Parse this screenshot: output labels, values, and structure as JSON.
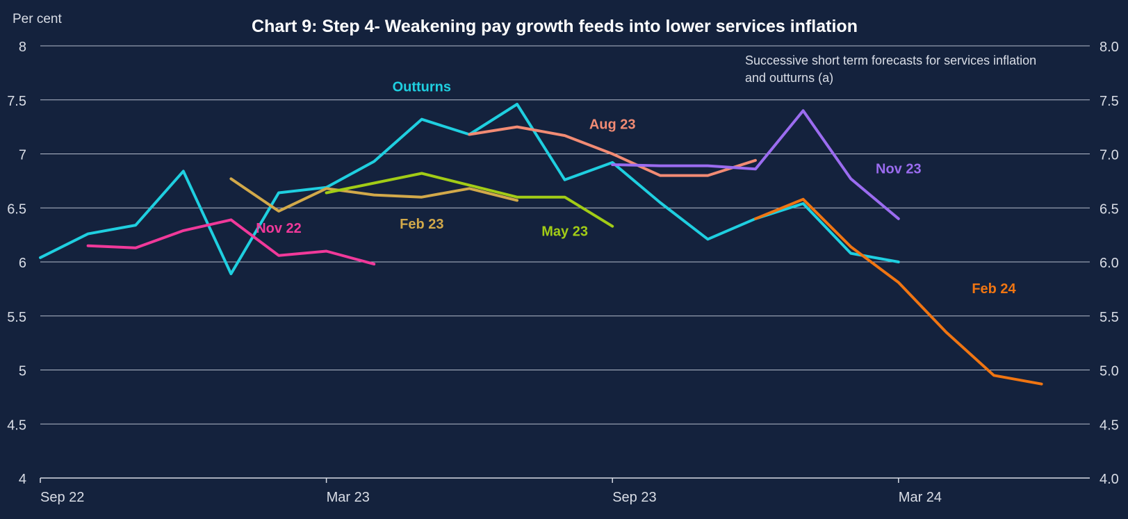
{
  "chart_data": {
    "type": "line",
    "title": "Chart  9: Step 4- Weakening pay growth feeds into lower services inflation",
    "subtitle_lines": [
      "Successive short term forecasts for services inflation",
      "and outturns (a)"
    ],
    "ylabel": "Per cent",
    "ylim": [
      4,
      8
    ],
    "yticks_left": [
      "4",
      "4.5",
      "5",
      "5.5",
      "6",
      "6.5",
      "7",
      "7.5",
      "8"
    ],
    "yticks_right": [
      "4.0",
      "4.5",
      "5.0",
      "5.5",
      "6.0",
      "6.5",
      "7.0",
      "7.5",
      "8.0"
    ],
    "ytick_values": [
      4,
      4.5,
      5,
      5.5,
      6,
      6.5,
      7,
      7.5,
      8
    ],
    "x_months": [
      "2022-09",
      "2022-10",
      "2022-11",
      "2022-12",
      "2023-01",
      "2023-02",
      "2023-03",
      "2023-04",
      "2023-05",
      "2023-06",
      "2023-07",
      "2023-08",
      "2023-09",
      "2023-10",
      "2023-11",
      "2023-12",
      "2024-01",
      "2024-02",
      "2024-03",
      "2024-04",
      "2024-05",
      "2024-06",
      "2024-07",
      "2024-08"
    ],
    "xticks": [
      {
        "label": "Sep 22",
        "month": "2022-09"
      },
      {
        "label": "Mar 23",
        "month": "2023-03"
      },
      {
        "label": "Sep 23",
        "month": "2023-09"
      },
      {
        "label": "Mar 24",
        "month": "2024-03"
      }
    ],
    "grid": true,
    "series": [
      {
        "name": "Outturns",
        "color": "#1fcfe0",
        "start": "2022-09",
        "values": [
          6.04,
          6.26,
          6.34,
          6.84,
          5.89,
          6.64,
          6.69,
          6.93,
          7.32,
          7.18,
          7.46,
          6.76,
          6.92,
          6.55,
          6.21,
          6.4,
          6.54,
          6.08,
          6.0
        ]
      },
      {
        "name": "Nov 22",
        "color": "#f0399a",
        "start": "2022-10",
        "values": [
          6.15,
          6.13,
          6.29,
          6.39,
          6.06,
          6.1,
          5.98
        ]
      },
      {
        "name": "Feb 23",
        "color": "#d2a94a",
        "start": "2023-01",
        "values": [
          6.77,
          6.47,
          6.68,
          6.62,
          6.6,
          6.68,
          6.57
        ]
      },
      {
        "name": "May 23",
        "color": "#a2cc16",
        "start": "2023-03",
        "values": [
          6.64,
          6.73,
          6.82,
          6.71,
          6.6,
          6.6,
          6.33
        ]
      },
      {
        "name": "Aug 23",
        "color": "#f28b74",
        "start": "2023-06",
        "values": [
          7.18,
          7.25,
          7.17,
          7.0,
          6.8,
          6.8,
          6.94
        ]
      },
      {
        "name": "Nov 23",
        "color": "#9b6cf0",
        "start": "2023-09",
        "values": [
          6.9,
          6.89,
          6.89,
          6.86,
          7.4,
          6.77,
          6.4
        ]
      },
      {
        "name": "Feb 24",
        "color": "#f07512",
        "start": "2023-12",
        "values": [
          6.4,
          6.58,
          6.14,
          5.81,
          5.35,
          4.95,
          4.87
        ]
      }
    ],
    "series_labels": [
      {
        "text": "Outturns",
        "color": "#1fcfe0",
        "month": "2023-05",
        "value": 7.58
      },
      {
        "text": "Nov 22",
        "color": "#f0399a",
        "month": "2023-02",
        "value": 6.27
      },
      {
        "text": "Feb 23",
        "color": "#d2a94a",
        "month": "2023-05",
        "value": 6.31
      },
      {
        "text": "May 23",
        "color": "#a2cc16",
        "month": "2023-08",
        "value": 6.24
      },
      {
        "text": "Aug 23",
        "color": "#f28b74",
        "month": "2023-09",
        "value": 7.23
      },
      {
        "text": "Nov 23",
        "color": "#9b6cf0",
        "month": "2024-03",
        "value": 6.82
      },
      {
        "text": "Feb 24",
        "color": "#f07512",
        "month": "2024-05",
        "value": 5.71
      }
    ]
  }
}
